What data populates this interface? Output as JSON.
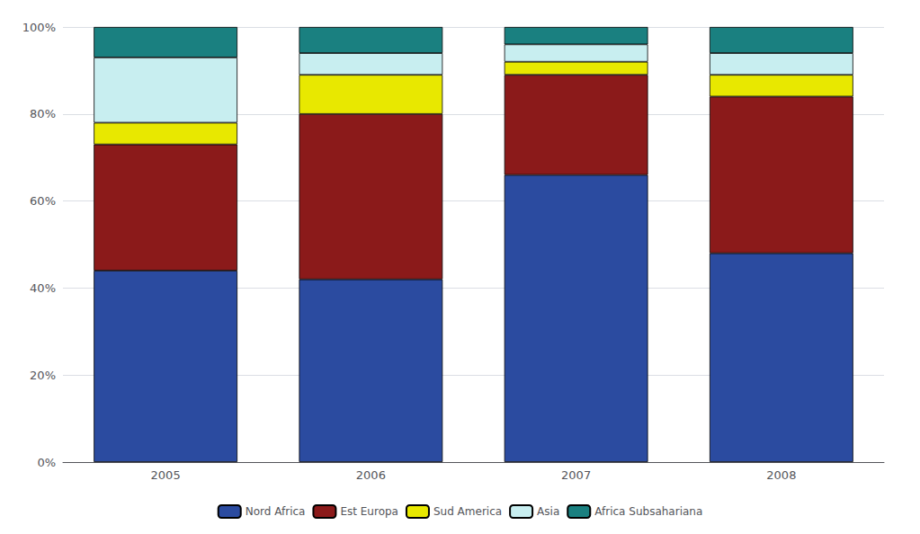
{
  "chart_data": {
    "type": "bar",
    "stacked": true,
    "categories": [
      "2005",
      "2006",
      "2007",
      "2008"
    ],
    "series": [
      {
        "name": "Nord Africa",
        "color": "#2B4BA0",
        "values": [
          44,
          42,
          66,
          48
        ]
      },
      {
        "name": "Est Europa",
        "color": "#8B1A1A",
        "values": [
          29,
          38,
          23,
          36
        ]
      },
      {
        "name": "Sud America",
        "color": "#E8E800",
        "values": [
          5,
          9,
          3,
          5
        ]
      },
      {
        "name": "Asia",
        "color": "#C8EEF0",
        "values": [
          15,
          5,
          4,
          5
        ]
      },
      {
        "name": "Africa Subsahariana",
        "color": "#1A8080",
        "values": [
          7,
          6,
          4,
          6
        ]
      }
    ],
    "ylim": [
      0,
      100
    ],
    "yticks": [
      {
        "value": 0,
        "label": "0%"
      },
      {
        "value": 20,
        "label": "20%"
      },
      {
        "value": 40,
        "label": "40%"
      },
      {
        "value": 60,
        "label": "60%"
      },
      {
        "value": 80,
        "label": "80%"
      },
      {
        "value": 100,
        "label": "100%"
      }
    ],
    "grid": true,
    "legend": "bottom"
  }
}
